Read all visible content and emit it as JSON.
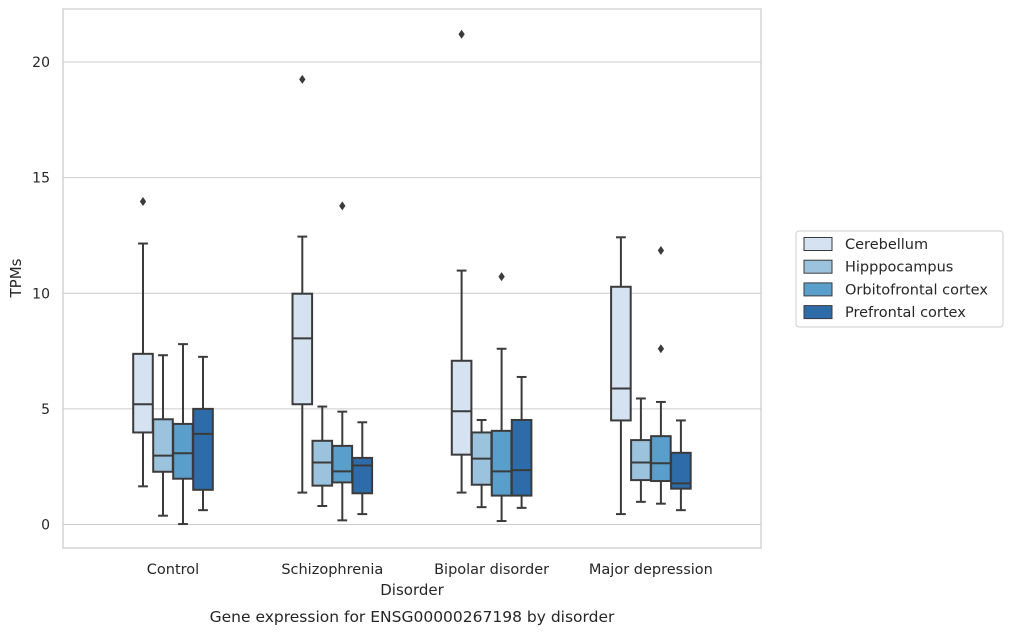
{
  "chart_data": {
    "type": "box",
    "xlabel": "Disorder",
    "ylabel": "TPMs",
    "caption": "Gene expression for ENSG00000267198 by disorder",
    "categories": [
      "Control",
      "Schizophrenia",
      "Bipolar disorder",
      "Major depression"
    ],
    "ylim": [
      -1,
      22.5
    ],
    "yticks": [
      0,
      5,
      10,
      15,
      20
    ],
    "grid": "horizontal",
    "legend_position": "right",
    "series": [
      {
        "name": "Cerebellum",
        "color": "#d4e2f1",
        "boxes": [
          {
            "whislo": 1.65,
            "q1": 3.98,
            "med": 5.2,
            "q3": 7.38,
            "whishi": 12.15,
            "fliers": [
              13.97
            ]
          },
          {
            "whislo": 1.38,
            "q1": 5.2,
            "med": 8.05,
            "q3": 9.98,
            "whishi": 12.45,
            "fliers": [
              19.25
            ]
          },
          {
            "whislo": 1.38,
            "q1": 3.02,
            "med": 4.9,
            "q3": 7.08,
            "whishi": 10.98,
            "fliers": [
              21.2
            ]
          },
          {
            "whislo": 0.45,
            "q1": 4.5,
            "med": 5.88,
            "q3": 10.28,
            "whishi": 12.42,
            "fliers": []
          }
        ]
      },
      {
        "name": "Hipppocampus",
        "color": "#9cc3de",
        "boxes": [
          {
            "whislo": 0.38,
            "q1": 2.28,
            "med": 2.98,
            "q3": 4.55,
            "whishi": 7.32,
            "fliers": []
          },
          {
            "whislo": 0.8,
            "q1": 1.68,
            "med": 2.68,
            "q3": 3.62,
            "whishi": 5.1,
            "fliers": []
          },
          {
            "whislo": 0.75,
            "q1": 1.72,
            "med": 2.85,
            "q3": 3.98,
            "whishi": 4.52,
            "fliers": []
          },
          {
            "whislo": 0.98,
            "q1": 1.92,
            "med": 2.68,
            "q3": 3.65,
            "whishi": 5.45,
            "fliers": []
          }
        ]
      },
      {
        "name": "Orbitofrontal cortex",
        "color": "#5a9fcb",
        "boxes": [
          {
            "whislo": 0.02,
            "q1": 1.98,
            "med": 3.08,
            "q3": 4.35,
            "whishi": 7.8,
            "fliers": []
          },
          {
            "whislo": 0.18,
            "q1": 1.82,
            "med": 2.3,
            "q3": 3.4,
            "whishi": 4.88,
            "fliers": [
              13.78
            ]
          },
          {
            "whislo": 0.15,
            "q1": 1.25,
            "med": 2.3,
            "q3": 4.05,
            "whishi": 7.6,
            "fliers": [
              10.72
            ]
          },
          {
            "whislo": 0.9,
            "q1": 1.88,
            "med": 2.65,
            "q3": 3.82,
            "whishi": 5.3,
            "fliers": [
              7.6,
              11.85
            ]
          }
        ]
      },
      {
        "name": "Prefrontal cortex",
        "color": "#2d6ba9",
        "boxes": [
          {
            "whislo": 0.62,
            "q1": 1.5,
            "med": 3.92,
            "q3": 5.0,
            "whishi": 7.25,
            "fliers": []
          },
          {
            "whislo": 0.45,
            "q1": 1.35,
            "med": 2.55,
            "q3": 2.88,
            "whishi": 4.42,
            "fliers": []
          },
          {
            "whislo": 0.72,
            "q1": 1.25,
            "med": 2.35,
            "q3": 4.52,
            "whishi": 6.38,
            "fliers": []
          },
          {
            "whislo": 0.62,
            "q1": 1.55,
            "med": 1.78,
            "q3": 3.1,
            "whishi": 4.5,
            "fliers": []
          }
        ]
      }
    ]
  }
}
